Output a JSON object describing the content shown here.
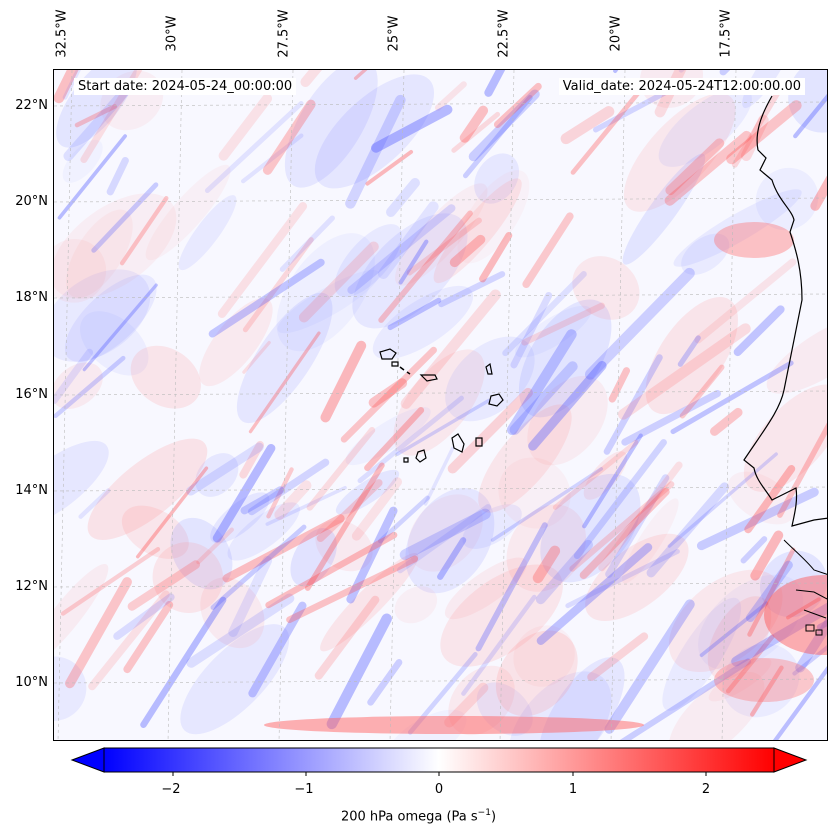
{
  "map": {
    "start_date": "Start date: 2024-05-24_00:00:00",
    "valid_date": "Valid_date: 2024-05-24T12:00:00.00",
    "lon_labels": [
      "32.5°W",
      "30°W",
      "27.5°W",
      "25°W",
      "22.5°W",
      "20°W",
      "17.5°W"
    ],
    "lat_labels": [
      "22°N",
      "20°N",
      "18°N",
      "16°N",
      "14°N",
      "12°N",
      "10°N"
    ],
    "lon_range": [
      -32.5,
      -15.0
    ],
    "lat_range": [
      9.0,
      22.8
    ]
  },
  "colorbar": {
    "label_prefix": "200 hPa omega (Pa s",
    "label_exp": "−1",
    "label_suffix": ")",
    "ticks": [
      "−2",
      "−1",
      "0",
      "1",
      "2"
    ],
    "range": [
      -2.6,
      2.6
    ],
    "cmap": "bwr",
    "colors": {
      "neg": "#0000ff",
      "mid": "#ffffff",
      "pos": "#ff0000"
    }
  },
  "islands": [
    "Cape Verde"
  ],
  "chart_data": {
    "type": "heatmap",
    "title": "",
    "xlabel": "",
    "ylabel": "",
    "variable": "200 hPa omega (Pa s−1)",
    "xlim": [
      -32.5,
      -15.0
    ],
    "ylim": [
      9.0,
      22.8
    ],
    "zlim": [
      -2.6,
      2.6
    ]
  }
}
